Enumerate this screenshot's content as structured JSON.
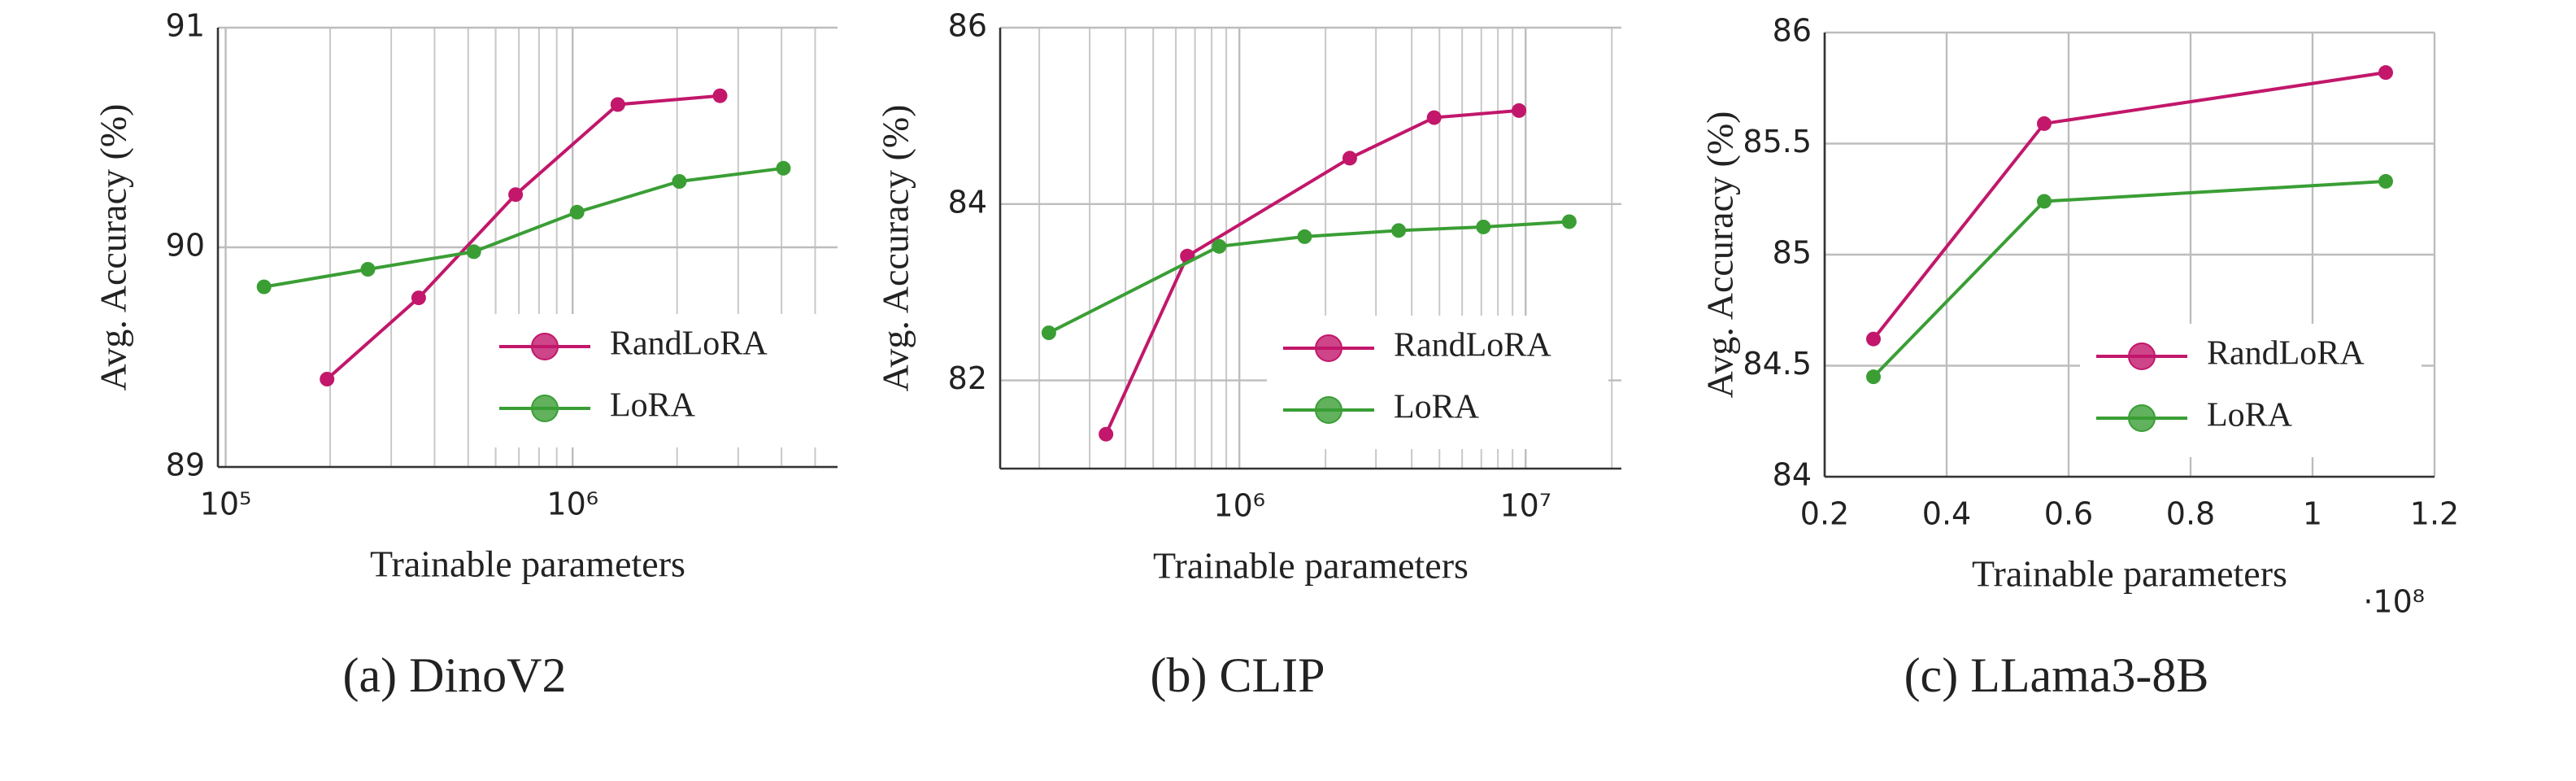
{
  "chart_data": [
    {
      "type": "line",
      "caption": "(a) DinoV2",
      "x_label": "Trainable parameters",
      "y_label": "Avg. Accuracy (%)",
      "xscale": "log",
      "xlim": [
        95000,
        5800000
      ],
      "ylim": [
        89,
        91
      ],
      "xticks": [
        {
          "value": 100000,
          "label": "10⁵"
        },
        {
          "value": 1000000,
          "label": "10⁶"
        }
      ],
      "yticks": [
        89,
        90,
        91
      ],
      "grid": true,
      "legend": "lower right",
      "series": [
        {
          "name": "RandLoRA",
          "color": "#c2176b",
          "x": [
            196000,
            360000,
            685000,
            1350000,
            2660000
          ],
          "values": [
            89.4,
            89.77,
            90.24,
            90.65,
            90.69
          ]
        },
        {
          "name": "LoRA",
          "color": "#3a9e35",
          "x": [
            129000,
            257000,
            519000,
            1030000,
            2030000,
            4050000
          ],
          "values": [
            89.82,
            89.9,
            89.98,
            90.16,
            90.3,
            90.36
          ]
        }
      ]
    },
    {
      "type": "line",
      "caption": "(b) CLIP",
      "x_label": "Trainable parameters",
      "y_label": "Avg. Accuracy (%)",
      "xscale": "log",
      "xlim": [
        146000,
        21600000
      ],
      "ylim": [
        81,
        86
      ],
      "xticks": [
        {
          "value": 1000000,
          "label": "10⁶"
        },
        {
          "value": 10000000,
          "label": "10⁷"
        }
      ],
      "yticks": [
        82,
        84,
        86
      ],
      "grid": true,
      "legend": "lower right",
      "series": [
        {
          "name": "RandLoRA",
          "color": "#c2176b",
          "x": [
            342000,
            658000,
            2430000,
            4790000,
            9480000
          ],
          "values": [
            81.39,
            83.41,
            84.52,
            84.98,
            85.06
          ]
        },
        {
          "name": "LoRA",
          "color": "#3a9e35",
          "x": [
            216000,
            850000,
            1690000,
            3600000,
            7120000,
            14200000
          ],
          "values": [
            82.54,
            83.52,
            83.63,
            83.7,
            83.74,
            83.8
          ]
        }
      ]
    },
    {
      "type": "line",
      "caption": "(c) LLama3-8B",
      "x_label": "Trainable parameters",
      "y_label": "Avg. Accuracy (%)",
      "xscale": "linear",
      "x_multiplier": "·10⁸",
      "xlim": [
        0.2,
        1.2
      ],
      "ylim": [
        84,
        86
      ],
      "xticks": [
        0.2,
        0.4,
        0.6,
        0.8,
        1,
        1.2
      ],
      "yticks": [
        84,
        {
          "value": 84.5,
          "label": "84.5"
        },
        85,
        {
          "value": 85.5,
          "label": "85.5"
        },
        86
      ],
      "grid": true,
      "legend": "lower right",
      "series": [
        {
          "name": "RandLoRA",
          "color": "#c2176b",
          "x": [
            0.28,
            0.56,
            1.12
          ],
          "values": [
            84.62,
            85.59,
            85.82
          ]
        },
        {
          "name": "LoRA",
          "color": "#3a9e35",
          "x": [
            0.28,
            0.56,
            1.12
          ],
          "values": [
            84.45,
            85.24,
            85.33
          ]
        }
      ]
    }
  ]
}
